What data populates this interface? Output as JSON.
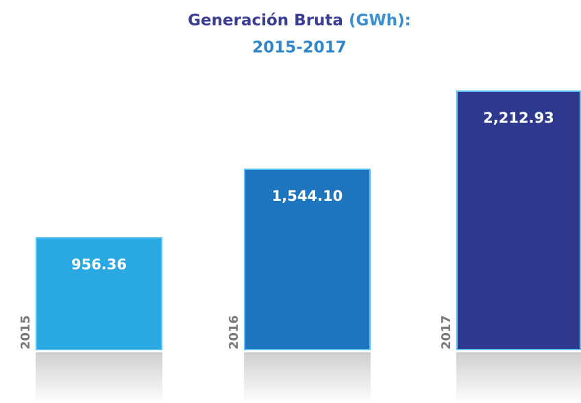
{
  "chart_data": {
    "type": "bar",
    "title": "Generación Bruta",
    "title_unit": "(GWh):",
    "subtitle": "2015-2017",
    "categories": [
      "2015",
      "2016",
      "2017"
    ],
    "values": [
      956.36,
      1544.1,
      2212.93
    ],
    "value_labels": [
      "956.36",
      "1,544.10",
      "2,212.93"
    ],
    "colors": [
      "#29a8e2",
      "#1f75bd",
      "#2e388d"
    ]
  }
}
